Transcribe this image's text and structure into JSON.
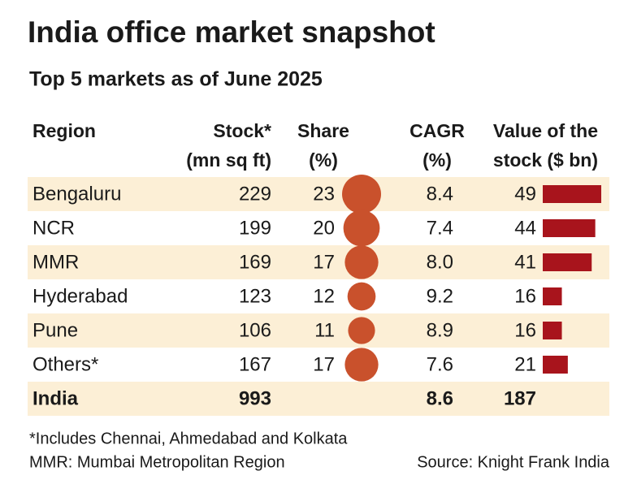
{
  "title": "India office market snapshot",
  "subtitle": "Top 5 markets as of June 2025",
  "table": {
    "headers": [
      [
        "Region"
      ],
      [
        "Stock*",
        "(mn sq ft)"
      ],
      [
        "Share",
        "(%)"
      ],
      [
        "CAGR",
        "(%)"
      ],
      [
        "Value of the",
        "stock ($ bn)"
      ]
    ],
    "rows": [
      [
        "Bengaluru",
        229,
        23,
        "8.4",
        49
      ],
      [
        "NCR",
        199,
        20,
        "7.4",
        44
      ],
      [
        "MMR",
        169,
        17,
        "8.0",
        41
      ],
      [
        "Hyderabad",
        123,
        12,
        "9.2",
        16
      ],
      [
        "Pune",
        106,
        11,
        "8.9",
        16
      ],
      [
        "Others*",
        167,
        17,
        "7.6",
        21
      ]
    ],
    "total": [
      "India",
      993,
      "8.6",
      187
    ]
  },
  "notes": [
    "*Includes Chennai, Ahmedabad and Kolkata",
    "MMR: Mumbai Metropolitan Region",
    "Source: Knight Frank India"
  ]
}
